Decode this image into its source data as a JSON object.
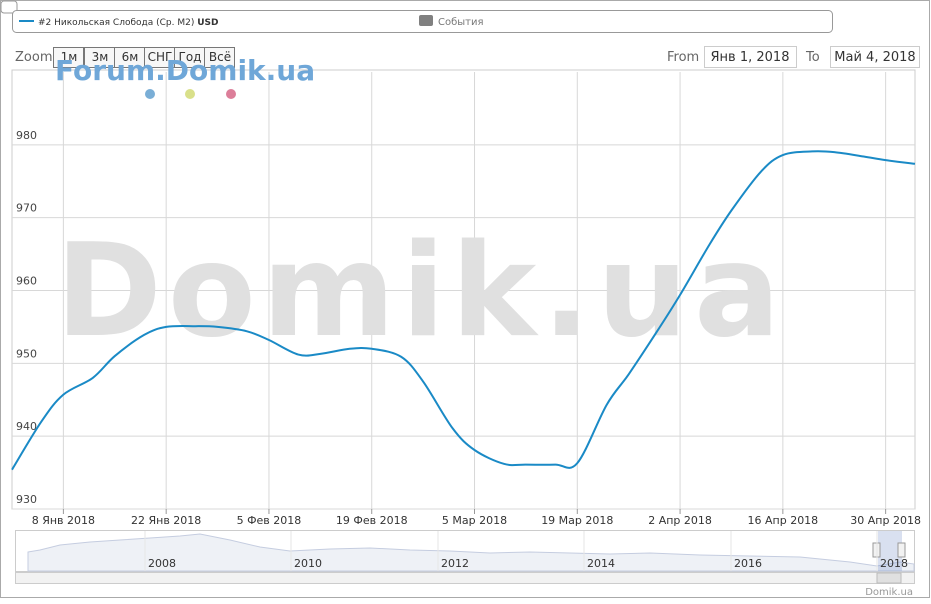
{
  "chart_data": {
    "type": "line",
    "legend_series_unit": "USD",
    "legend_events": "События",
    "x": [
      "2018-01-01",
      "2018-01-05",
      "2018-01-08",
      "2018-01-12",
      "2018-01-15",
      "2018-01-19",
      "2018-01-22",
      "2018-01-26",
      "2018-01-29",
      "2018-02-02",
      "2018-02-05",
      "2018-02-09",
      "2018-02-12",
      "2018-02-16",
      "2018-02-19",
      "2018-02-23",
      "2018-02-26",
      "2018-03-02",
      "2018-03-05",
      "2018-03-09",
      "2018-03-12",
      "2018-03-16",
      "2018-03-19",
      "2018-03-23",
      "2018-03-26",
      "2018-03-30",
      "2018-04-02",
      "2018-04-06",
      "2018-04-09",
      "2018-04-13",
      "2018-04-16",
      "2018-04-20",
      "2018-04-23",
      "2018-04-27",
      "2018-04-30",
      "2018-05-04"
    ],
    "series": [
      {
        "name": "#2 Никольская Слобода (Ср. М2)",
        "color": "#1a8ac6",
        "values": [
          935.4,
          942,
          945.7,
          948,
          951,
          953.9,
          955,
          955.1,
          955,
          954.4,
          953.2,
          951.2,
          951.3,
          952,
          952,
          950.9,
          947.5,
          941.1,
          938.1,
          936.2,
          936.1,
          936.1,
          936.3,
          944.3,
          948.5,
          954.6,
          959.4,
          966.3,
          971,
          976.3,
          978.6,
          979.1,
          979,
          978.4,
          977.9,
          977.4
        ]
      }
    ],
    "xlim": [
      "2018-01-01",
      "2018-05-04"
    ],
    "xticks": [
      {
        "value": "2018-01-08",
        "label": "8 Янв 2018"
      },
      {
        "value": "2018-01-22",
        "label": "22 Янв 2018"
      },
      {
        "value": "2018-02-05",
        "label": "5 Фев 2018"
      },
      {
        "value": "2018-02-19",
        "label": "19 Фев 2018"
      },
      {
        "value": "2018-03-05",
        "label": "5 Мар 2018"
      },
      {
        "value": "2018-03-19",
        "label": "19 Мар 2018"
      },
      {
        "value": "2018-04-02",
        "label": "2 Апр 2018"
      },
      {
        "value": "2018-04-16",
        "label": "16 Апр 2018"
      },
      {
        "value": "2018-04-30",
        "label": "30 Апр 2018"
      }
    ],
    "ylim": [
      930,
      990
    ],
    "yticks": [
      930,
      940,
      950,
      960,
      970,
      980
    ],
    "grid": true
  },
  "range_selector": {
    "label": "Zoom",
    "buttons": [
      "1м",
      "3м",
      "6м",
      "СНГ",
      "Год",
      "Всё"
    ],
    "from_label": "From",
    "from": "Янв 1, 2018",
    "to_label": "To",
    "to": "Май 4, 2018"
  },
  "navigator": {
    "labels": [
      "2008",
      "2010",
      "2012",
      "2014",
      "2016",
      "2018"
    ]
  },
  "watermarks": {
    "forum": "Forum.Domik.ua",
    "main": "Domik.ua"
  },
  "credit": "Domik.ua"
}
